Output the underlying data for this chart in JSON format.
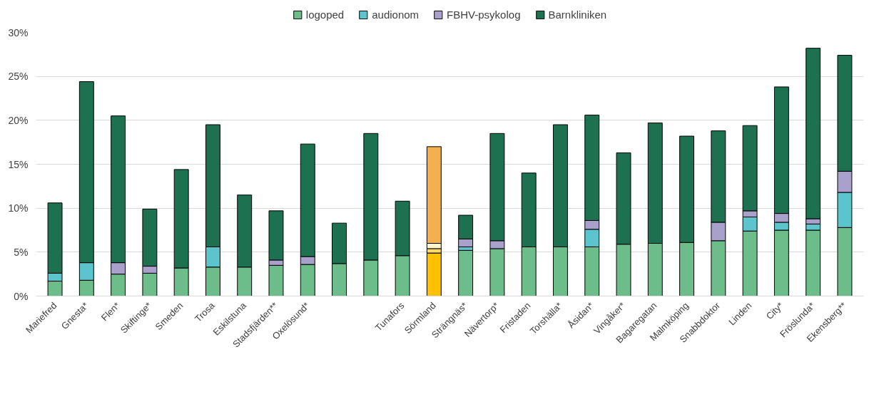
{
  "chart_data": {
    "type": "bar",
    "stacked": true,
    "categories": [
      "Mariefred",
      "Gnesta*",
      "Flen*",
      "Skiftinge*",
      "Smeden",
      "Trosa",
      "Eskilstuna",
      "Stadsfjärden**",
      "Oxelösund*",
      null,
      null,
      "Tunafors",
      "Sörmland",
      "Strängnäs*",
      "Nävertorp*",
      "Fristaden",
      "Torshälla*",
      "Åsidan*",
      "Vingåker*",
      "Bagaregatan",
      "Malmköping",
      "Snabbdoktor",
      "Linden",
      "City*",
      "Fröslunda*",
      "Ekensberg**"
    ],
    "series": [
      {
        "name": "logoped",
        "color": "#6dbd8a",
        "colors": [
          "#6dbd8a",
          "#6dbd8a",
          "#6dbd8a",
          "#6dbd8a",
          "#6dbd8a",
          "#6dbd8a",
          "#6dbd8a",
          "#6dbd8a",
          "#6dbd8a",
          "#6dbd8a",
          "#6dbd8a",
          "#6dbd8a",
          "#ffc000",
          "#6dbd8a",
          "#6dbd8a",
          "#6dbd8a",
          "#6dbd8a",
          "#6dbd8a",
          "#6dbd8a",
          "#6dbd8a",
          "#6dbd8a",
          "#6dbd8a",
          "#6dbd8a",
          "#6dbd8a",
          "#6dbd8a",
          "#6dbd8a"
        ],
        "values": [
          1.7,
          1.8,
          2.5,
          2.6,
          3.2,
          3.3,
          3.3,
          3.5,
          3.6,
          3.7,
          4.1,
          4.6,
          4.9,
          5.2,
          5.4,
          5.6,
          5.6,
          5.6,
          5.9,
          6.0,
          6.1,
          6.3,
          7.4,
          7.5,
          7.5,
          7.8
        ]
      },
      {
        "name": "audionom",
        "color": "#5bc4cc",
        "colors": [
          "#5bc4cc",
          "#5bc4cc",
          "#5bc4cc",
          "#5bc4cc",
          "#5bc4cc",
          "#5bc4cc",
          "#5bc4cc",
          "#5bc4cc",
          "#5bc4cc",
          "#5bc4cc",
          "#5bc4cc",
          "#5bc4cc",
          "#ffd966",
          "#5bc4cc",
          "#5bc4cc",
          "#5bc4cc",
          "#5bc4cc",
          "#5bc4cc",
          "#5bc4cc",
          "#5bc4cc",
          "#5bc4cc",
          "#5bc4cc",
          "#5bc4cc",
          "#5bc4cc",
          "#5bc4cc",
          "#5bc4cc"
        ],
        "values": [
          0.9,
          2.0,
          0,
          0,
          0,
          2.3,
          0,
          0,
          0,
          0,
          0,
          0,
          0.5,
          0.4,
          0,
          0,
          0,
          2.0,
          0,
          0,
          0,
          0,
          1.6,
          0.9,
          0.7,
          4.0
        ]
      },
      {
        "name": "FBHV-psykolog",
        "color": "#a9a0cc",
        "colors": [
          "#a9a0cc",
          "#a9a0cc",
          "#a9a0cc",
          "#a9a0cc",
          "#a9a0cc",
          "#a9a0cc",
          "#a9a0cc",
          "#a9a0cc",
          "#a9a0cc",
          "#a9a0cc",
          "#a9a0cc",
          "#a9a0cc",
          "#fff2cc",
          "#a9a0cc",
          "#a9a0cc",
          "#a9a0cc",
          "#a9a0cc",
          "#a9a0cc",
          "#a9a0cc",
          "#a9a0cc",
          "#a9a0cc",
          "#a9a0cc",
          "#a9a0cc",
          "#a9a0cc",
          "#a9a0cc",
          "#a9a0cc"
        ],
        "values": [
          0,
          0,
          1.3,
          0.8,
          0,
          0,
          0,
          0.6,
          0.9,
          0,
          0,
          0,
          0.6,
          0.9,
          0.9,
          0,
          0,
          1.0,
          0,
          0,
          0,
          2.1,
          0.7,
          1.0,
          0.6,
          2.4
        ]
      },
      {
        "name": "Barnkliniken",
        "color": "#1e7150",
        "colors": [
          "#1e7150",
          "#1e7150",
          "#1e7150",
          "#1e7150",
          "#1e7150",
          "#1e7150",
          "#1e7150",
          "#1e7150",
          "#1e7150",
          "#1e7150",
          "#1e7150",
          "#1e7150",
          "#f4b04f",
          "#1e7150",
          "#1e7150",
          "#1e7150",
          "#1e7150",
          "#1e7150",
          "#1e7150",
          "#1e7150",
          "#1e7150",
          "#1e7150",
          "#1e7150",
          "#1e7150",
          "#1e7150",
          "#1e7150"
        ],
        "values": [
          8.0,
          20.6,
          16.7,
          6.5,
          11.2,
          13.9,
          8.2,
          5.6,
          12.8,
          4.6,
          14.4,
          6.2,
          11.0,
          2.7,
          12.2,
          8.4,
          13.9,
          12.0,
          10.4,
          13.7,
          12.1,
          10.4,
          9.7,
          14.4,
          19.4,
          13.2
        ]
      }
    ],
    "ylim": [
      0,
      30
    ],
    "yticks": [
      {
        "value": 0,
        "label": "0%"
      },
      {
        "value": 5,
        "label": "5%"
      },
      {
        "value": 10,
        "label": "10%"
      },
      {
        "value": 15,
        "label": "15%"
      },
      {
        "value": 20,
        "label": "20%"
      },
      {
        "value": 25,
        "label": "25%"
      },
      {
        "value": 30,
        "label": "30%"
      }
    ],
    "grid": "y",
    "legend": "top"
  }
}
